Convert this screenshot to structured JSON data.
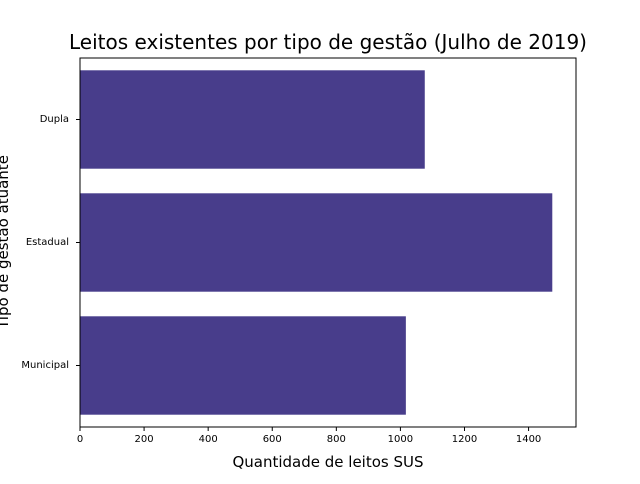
{
  "chart_data": {
    "type": "bar",
    "orientation": "horizontal",
    "title": "Leitos existentes por tipo de gestão (Julho de 2019)",
    "xlabel": "Quantidade de leitos SUS",
    "ylabel": "Tipo de gestão atuante",
    "categories": [
      "Municipal",
      "Estadual",
      "Dupla"
    ],
    "values": [
      1017,
      1474,
      1076
    ],
    "xlim": [
      0,
      1548
    ],
    "xticks": [
      0,
      200,
      400,
      600,
      800,
      1000,
      1200,
      1400
    ],
    "grid": false,
    "legend": "none",
    "bar_color": "#483D8B"
  }
}
